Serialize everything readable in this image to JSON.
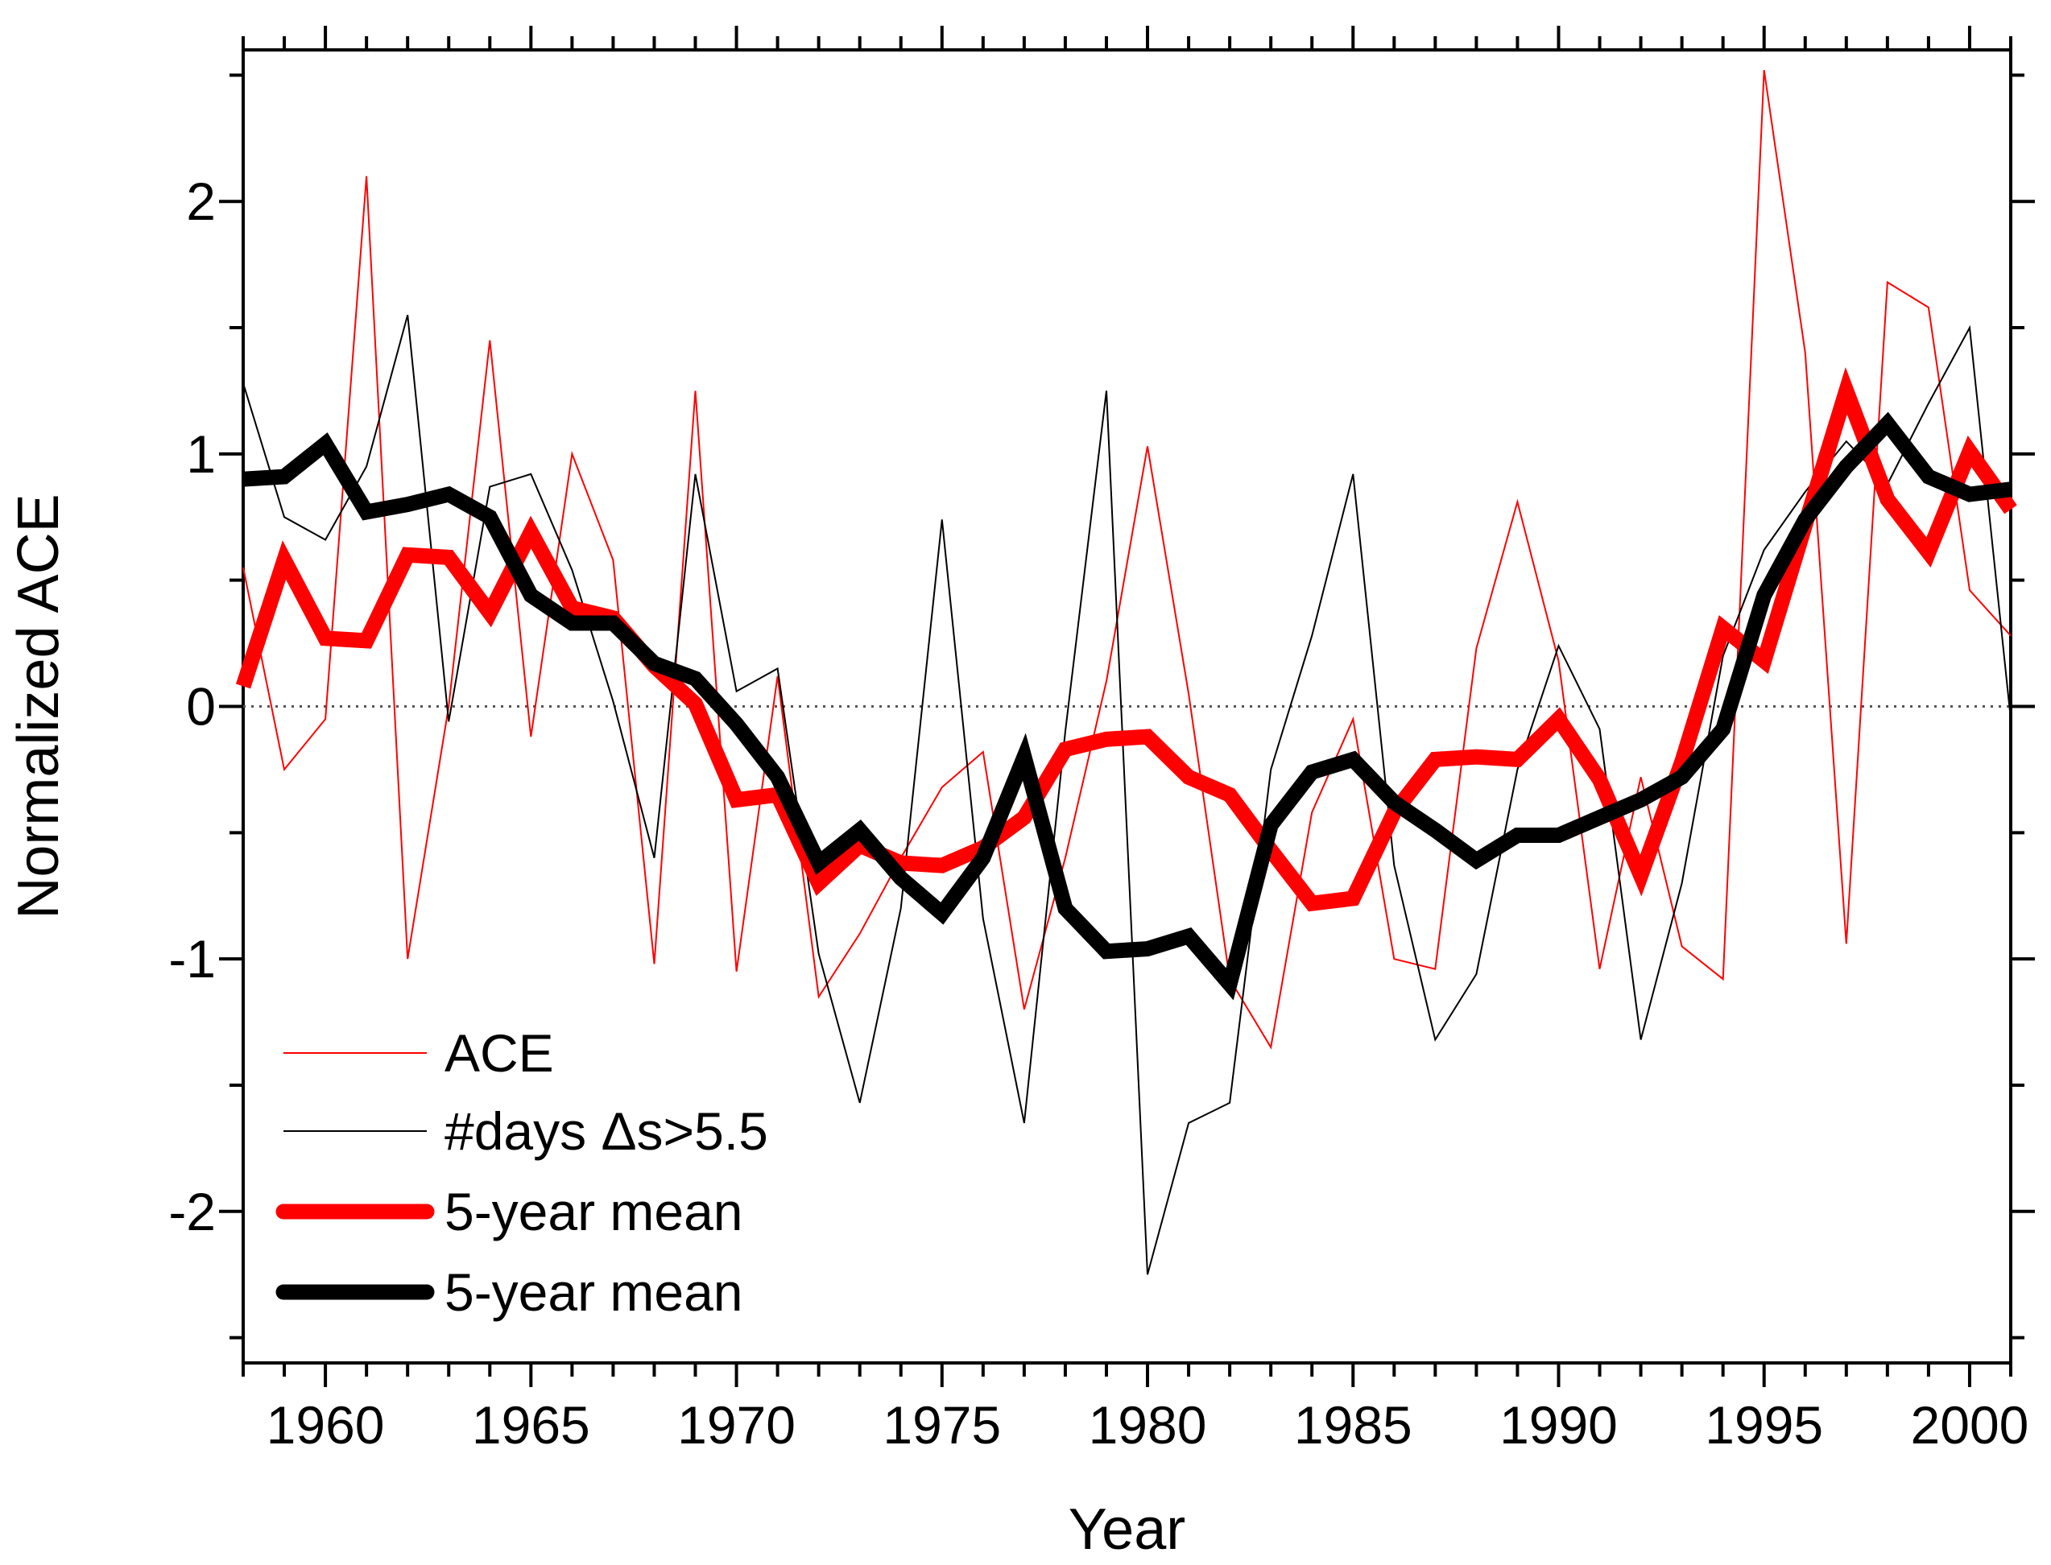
{
  "chart_data": {
    "type": "line",
    "title": "",
    "xlabel": "Year",
    "ylabel": "Normalized ACE",
    "xlim": [
      1958,
      2001
    ],
    "ylim": [
      -2.6,
      2.6
    ],
    "x_ticks": [
      1960,
      1965,
      1970,
      1975,
      1980,
      1985,
      1990,
      1995,
      2000
    ],
    "y_ticks": [
      -2,
      -1,
      0,
      1,
      2
    ],
    "x_tick_labels": [
      "1960",
      "1965",
      "1970",
      "1975",
      "1980",
      "1985",
      "1990",
      "1995",
      "2000"
    ],
    "y_tick_labels": [
      "-2",
      "-1",
      "0",
      "1",
      "2"
    ],
    "reference_line": {
      "y": 0,
      "style": "dotted"
    },
    "grid": false,
    "legend_position": "bottom-left",
    "x": [
      1958,
      1959,
      1960,
      1961,
      1962,
      1963,
      1964,
      1965,
      1966,
      1967,
      1968,
      1969,
      1970,
      1971,
      1972,
      1973,
      1974,
      1975,
      1976,
      1977,
      1978,
      1979,
      1980,
      1981,
      1982,
      1983,
      1984,
      1985,
      1986,
      1987,
      1988,
      1989,
      1990,
      1991,
      1992,
      1993,
      1994,
      1995,
      1996,
      1997,
      1998,
      1999,
      2000,
      2001
    ],
    "series": [
      {
        "name": "ACE",
        "color": "#ff0000",
        "weight": "thin",
        "values": [
          0.55,
          -0.25,
          -0.05,
          2.1,
          -1.0,
          0.0,
          1.45,
          -0.12,
          1.0,
          0.58,
          -1.02,
          1.25,
          -1.05,
          0.12,
          -1.15,
          -0.9,
          -0.6,
          -0.32,
          -0.18,
          -1.2,
          -0.6,
          0.1,
          1.03,
          0.05,
          -1.08,
          -1.35,
          -0.42,
          -0.05,
          -1.0,
          -1.04,
          0.23,
          0.81,
          0.18,
          -1.04,
          -0.28,
          -0.95,
          -1.08,
          2.52,
          1.4,
          -0.94,
          1.68,
          1.58,
          0.46,
          0.28
        ]
      },
      {
        "name": "#days Δs>5.5",
        "color": "#000000",
        "weight": "thin",
        "values": [
          1.28,
          0.75,
          0.66,
          0.95,
          1.55,
          -0.06,
          0.87,
          0.92,
          0.54,
          0.02,
          -0.6,
          0.92,
          0.06,
          0.15,
          -0.98,
          -1.57,
          -0.8,
          0.74,
          -0.84,
          -1.65,
          -0.1,
          1.25,
          -2.25,
          -1.65,
          -1.57,
          -0.25,
          0.28,
          0.92,
          -0.63,
          -1.32,
          -1.06,
          -0.25,
          0.24,
          -0.09,
          -1.32,
          -0.7,
          0.2,
          0.62,
          0.85,
          1.05,
          0.88,
          1.2,
          1.5,
          -0.05
        ]
      },
      {
        "name": "5-year mean",
        "color": "#ff0000",
        "weight": "thick",
        "values": [
          0.08,
          0.58,
          0.27,
          0.26,
          0.6,
          0.59,
          0.37,
          0.69,
          0.39,
          0.35,
          0.16,
          0.01,
          -0.37,
          -0.35,
          -0.7,
          -0.55,
          -0.62,
          -0.63,
          -0.56,
          -0.44,
          -0.17,
          -0.13,
          -0.12,
          -0.28,
          -0.35,
          -0.57,
          -0.78,
          -0.76,
          -0.42,
          -0.21,
          -0.2,
          -0.21,
          -0.05,
          -0.29,
          -0.67,
          -0.22,
          0.31,
          0.18,
          0.72,
          1.25,
          0.82,
          0.61,
          1.01,
          0.78
        ]
      },
      {
        "name": "5-year mean",
        "color": "#000000",
        "weight": "thick",
        "values": [
          0.9,
          0.91,
          1.04,
          0.77,
          0.8,
          0.84,
          0.75,
          0.44,
          0.33,
          0.33,
          0.17,
          0.11,
          -0.07,
          -0.28,
          -0.62,
          -0.49,
          -0.68,
          -0.82,
          -0.6,
          -0.2,
          -0.8,
          -0.97,
          -0.96,
          -0.91,
          -1.1,
          -0.47,
          -0.26,
          -0.21,
          -0.38,
          -0.49,
          -0.61,
          -0.51,
          -0.51,
          -0.44,
          -0.37,
          -0.28,
          -0.09,
          0.44,
          0.74,
          0.95,
          1.12,
          0.91,
          0.84,
          0.86
        ]
      }
    ]
  }
}
